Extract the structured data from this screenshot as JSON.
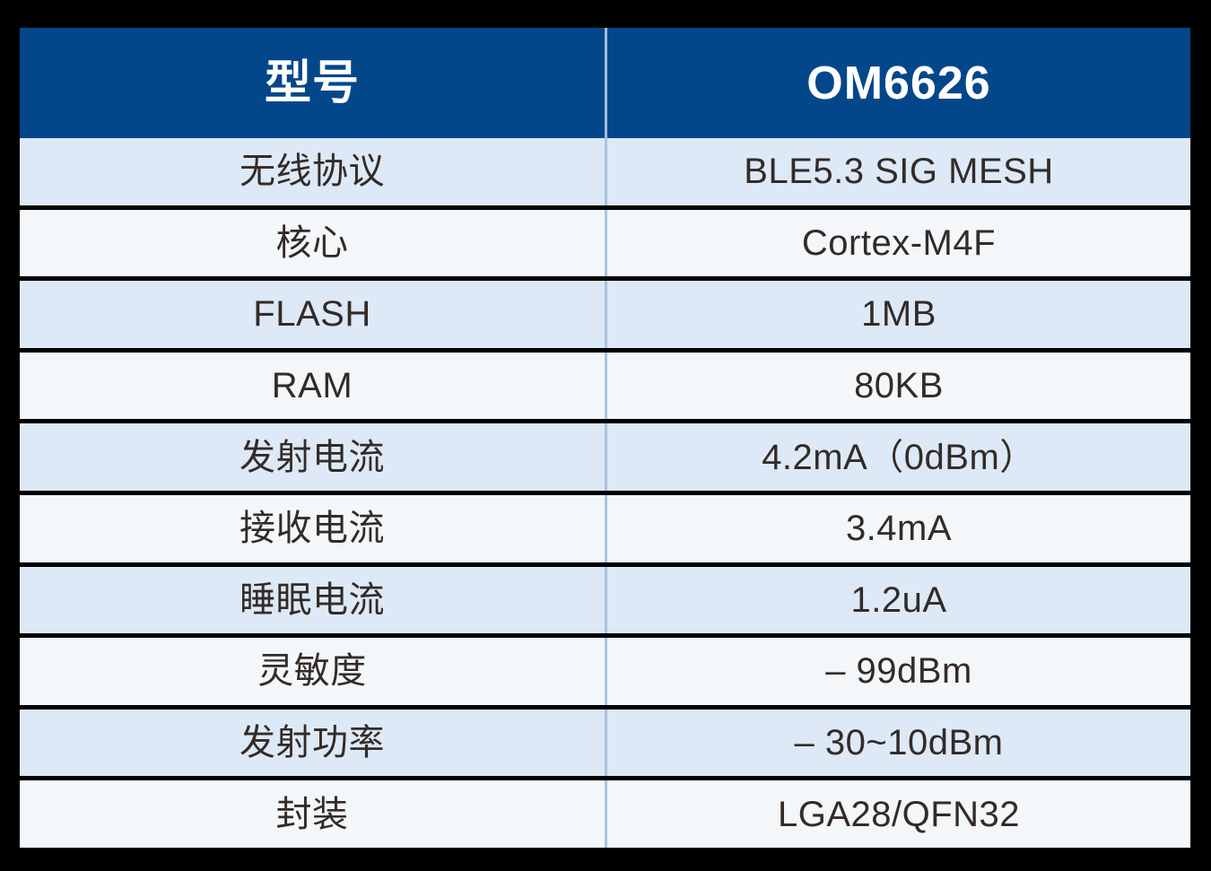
{
  "colors": {
    "page_bg": "#000000",
    "header_bg": "#03478a",
    "header_text": "#ffffff",
    "row_alt1": "#dde9f6",
    "row_alt2": "#f3f7fa",
    "cell_text": "#332b28",
    "divider": "#a9c3de"
  },
  "table": {
    "header": {
      "col1": "型号",
      "col2": "OM6626"
    },
    "rows": [
      {
        "label": "无线协议",
        "value": "BLE5.3 SIG MESH"
      },
      {
        "label": "核心",
        "value": "Cortex-M4F"
      },
      {
        "label": "FLASH",
        "value": "1MB"
      },
      {
        "label": "RAM",
        "value": "80KB"
      },
      {
        "label": "发射电流",
        "value": "4.2mA（0dBm）"
      },
      {
        "label": "接收电流",
        "value": "3.4mA"
      },
      {
        "label": "睡眠电流",
        "value": "1.2uA"
      },
      {
        "label": "灵敏度",
        "value": "– 99dBm"
      },
      {
        "label": "发射功率",
        "value": "– 30~10dBm"
      },
      {
        "label": "封装",
        "value": "LGA28/QFN32"
      }
    ]
  },
  "chart_data": {
    "type": "table",
    "title": "OM6626 规格表",
    "columns": [
      "型号",
      "OM6626"
    ],
    "rows": [
      [
        "无线协议",
        "BLE5.3 SIG MESH"
      ],
      [
        "核心",
        "Cortex-M4F"
      ],
      [
        "FLASH",
        "1MB"
      ],
      [
        "RAM",
        "80KB"
      ],
      [
        "发射电流",
        "4.2mA（0dBm）"
      ],
      [
        "接收电流",
        "3.4mA"
      ],
      [
        "睡眠电流",
        "1.2uA"
      ],
      [
        "灵敏度",
        "– 99dBm"
      ],
      [
        "发射功率",
        "– 30~10dBm"
      ],
      [
        "封装",
        "LGA28/QFN32"
      ]
    ]
  }
}
